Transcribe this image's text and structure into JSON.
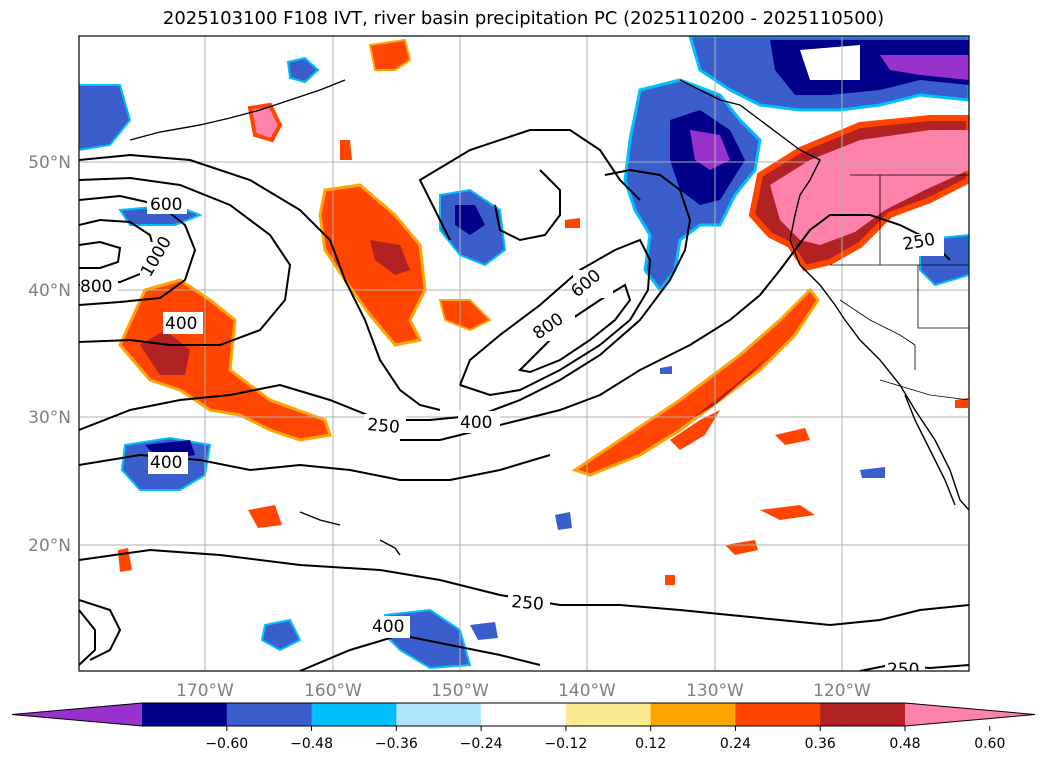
{
  "title": "2025103100 F108 IVT, river basin precipitation PC (2025110200 - 2025110500)",
  "map": {
    "lat_labels": [
      "50°N",
      "40°N",
      "30°N",
      "20°N"
    ],
    "lon_labels": [
      "170°W",
      "160°W",
      "150°W",
      "140°W",
      "130°W",
      "120°W"
    ],
    "ivt_contour_labels": [
      "600",
      "1000",
      "800",
      "400",
      "400",
      "250",
      "400",
      "600",
      "800",
      "250",
      "400",
      "250",
      "250"
    ]
  },
  "colorbar": {
    "ticks": [
      "−0.60",
      "−0.48",
      "−0.36",
      "−0.24",
      "−0.12",
      "0.12",
      "0.24",
      "0.36",
      "0.48",
      "0.60"
    ],
    "colors": [
      "#9932cc",
      "#00008b",
      "#3a5fcd",
      "#00bfff",
      "#afe4fb",
      "#ffffff",
      "#fde98f",
      "#ffa500",
      "#ff4500",
      "#b22222",
      "#ff82ab"
    ]
  }
}
